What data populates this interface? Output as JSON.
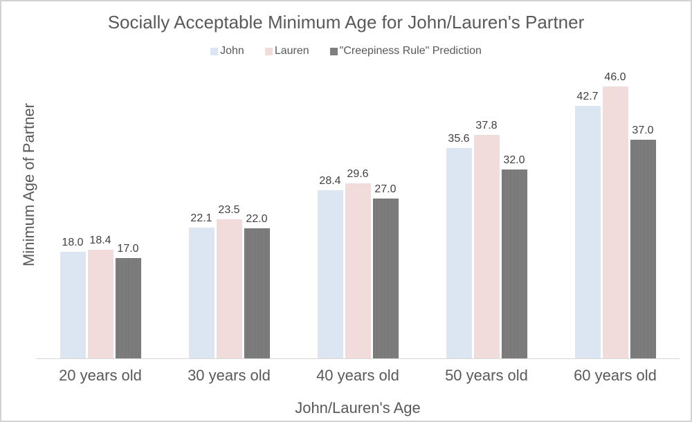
{
  "frame": {
    "background_color": "#ffffff",
    "border_color": "#d2d2d2"
  },
  "colors": {
    "title_text": "#595959",
    "axis_text": "#595959",
    "data_label_text": "#404040",
    "axis_line": "#d7d7d7"
  },
  "chart_data": {
    "type": "bar",
    "title": "Socially Acceptable Minimum Age for John/Lauren's Partner",
    "xlabel": "John/Lauren's Age",
    "ylabel": "Minimum Age of Partner",
    "categories": [
      "20 years old",
      "30 years old",
      "40 years old",
      "50 years old",
      "60 years old"
    ],
    "series": [
      {
        "name": "John",
        "color": "#dce6f2",
        "values": [
          18.0,
          22.1,
          28.4,
          35.6,
          42.7
        ]
      },
      {
        "name": "Lauren",
        "color": "#f2dcdb",
        "values": [
          18.4,
          23.5,
          29.6,
          37.8,
          46.0
        ]
      },
      {
        "name": "\"Creepiness Rule\" Prediction",
        "color": "#7f7f7f",
        "pattern": {
          "type": "vertical-stripes",
          "dark": "#6f6f6f",
          "light": "#878787"
        },
        "values": [
          17.0,
          22.0,
          27.0,
          32.0,
          37.0
        ]
      }
    ],
    "ylim": [
      0,
      50
    ],
    "grid": false,
    "y_axis_ticks_visible": false,
    "legend_position": "top",
    "data_labels": true,
    "data_label_decimals": 1
  }
}
